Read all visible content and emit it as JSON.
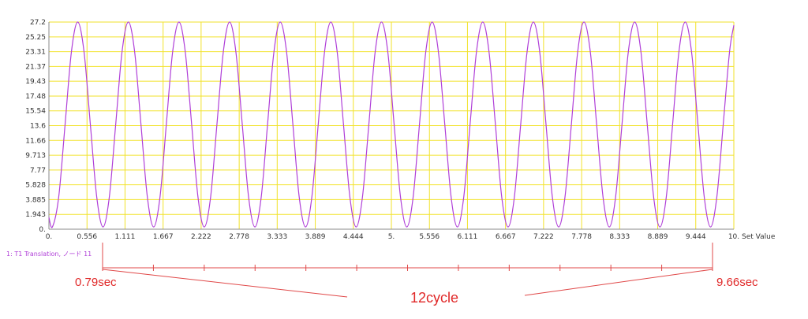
{
  "chart_data": {
    "type": "line",
    "x_label": "Set Value",
    "x": [
      0,
      0.051,
      0.143,
      0.236,
      0.328,
      0.42,
      0.513,
      0.605,
      0.698,
      0.79,
      0.882,
      0.975,
      1.067,
      1.16,
      1.252,
      1.344,
      1.437,
      1.529,
      1.622,
      1.714,
      1.806,
      1.899,
      1.991,
      2.084,
      2.176,
      2.268,
      2.361,
      2.453,
      2.546,
      2.638,
      2.73,
      2.823,
      2.915,
      3.008,
      3.1,
      3.192,
      3.285,
      3.377,
      3.47,
      3.562,
      3.654,
      3.747,
      3.839,
      3.932,
      4.024,
      4.116,
      4.209,
      4.301,
      4.394,
      4.486,
      4.578,
      4.671,
      4.763,
      4.856,
      4.948,
      5.04,
      5.133,
      5.225,
      5.318,
      5.41,
      5.502,
      5.595,
      5.687,
      5.78,
      5.872,
      5.964,
      6.057,
      6.149,
      6.242,
      6.334,
      6.426,
      6.519,
      6.611,
      6.704,
      6.796,
      6.888,
      6.981,
      7.073,
      7.166,
      7.258,
      7.35,
      7.443,
      7.535,
      7.628,
      7.72,
      7.812,
      7.905,
      7.997,
      8.09,
      8.182,
      8.274,
      8.367,
      8.459,
      8.552,
      8.644,
      8.736,
      8.829,
      8.921,
      9.014,
      9.106,
      9.198,
      9.291,
      9.383,
      9.476,
      9.568,
      9.66,
      9.752,
      9.845,
      9.937,
      10
    ],
    "series": [
      {
        "name": "1: T1 Translation, ノード 11",
        "color": "#b040d8",
        "values": [
          1.54,
          0.3,
          4.24,
          13.75,
          23.26,
          27.2,
          23.26,
          13.75,
          4.24,
          0.3,
          4.24,
          13.75,
          23.26,
          27.2,
          23.26,
          13.75,
          4.24,
          0.3,
          4.24,
          13.75,
          23.26,
          27.2,
          23.26,
          13.75,
          4.24,
          0.3,
          4.24,
          13.75,
          23.26,
          27.2,
          23.26,
          13.75,
          4.24,
          0.3,
          4.24,
          13.75,
          23.26,
          27.2,
          23.26,
          13.75,
          4.24,
          0.3,
          4.24,
          13.75,
          23.26,
          27.2,
          23.26,
          13.75,
          4.24,
          0.3,
          4.24,
          13.75,
          23.26,
          27.2,
          23.26,
          13.75,
          4.24,
          0.3,
          4.24,
          13.75,
          23.26,
          27.2,
          23.26,
          13.75,
          4.24,
          0.3,
          4.24,
          13.75,
          23.26,
          27.2,
          23.26,
          13.75,
          4.24,
          0.3,
          4.24,
          13.75,
          23.26,
          27.2,
          23.26,
          13.75,
          4.24,
          0.3,
          4.24,
          13.75,
          23.26,
          27.2,
          23.26,
          13.75,
          4.24,
          0.3,
          4.24,
          13.75,
          23.26,
          27.2,
          23.26,
          13.75,
          4.24,
          0.3,
          4.24,
          13.75,
          23.26,
          27.2,
          23.26,
          13.75,
          4.24,
          0.3,
          4.24,
          13.75,
          23.26,
          26.78
        ]
      }
    ],
    "xlim": [
      0,
      10
    ],
    "xticks": [
      {
        "value": 0,
        "label": "0."
      },
      0.556,
      1.111,
      1.667,
      2.222,
      2.778,
      3.333,
      3.889,
      4.444,
      {
        "value": 5,
        "label": "5."
      },
      5.556,
      6.111,
      6.667,
      7.222,
      7.778,
      8.333,
      8.889,
      9.444,
      {
        "value": 10,
        "label": "10."
      }
    ],
    "ylim": [
      0,
      27.2
    ],
    "yticks": [
      {
        "value": 0,
        "label": "0."
      },
      1.943,
      3.885,
      5.828,
      7.77,
      9.713,
      11.66,
      13.6,
      15.54,
      17.48,
      19.43,
      21.37,
      23.31,
      25.25,
      27.2
    ],
    "grid": true,
    "grid_color": "#f2e22a",
    "annotations": {
      "start": "0.79sec",
      "end": "9.66sec",
      "count": "12cycle"
    }
  }
}
